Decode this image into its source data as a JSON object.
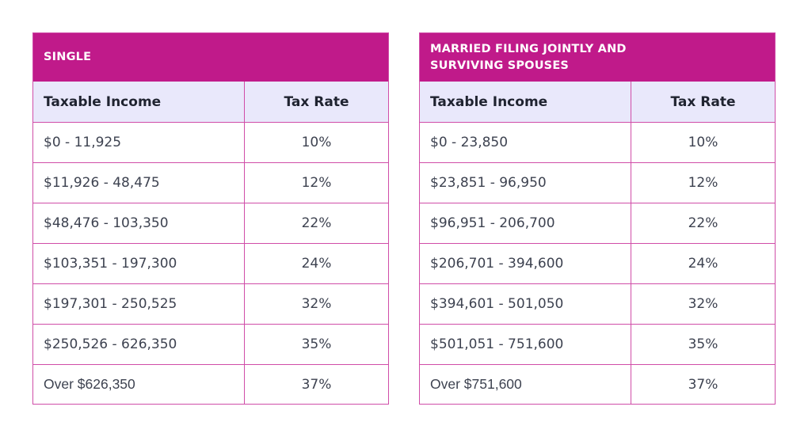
{
  "tables": [
    {
      "title": "SINGLE",
      "headers": {
        "income": "Taxable Income",
        "rate": "Tax Rate"
      },
      "rows": [
        {
          "income": "$0 - 11,925",
          "rate": "10%"
        },
        {
          "income": "$11,926 - 48,475",
          "rate": "12%"
        },
        {
          "income": "$48,476 - 103,350",
          "rate": "22%"
        },
        {
          "income": "$103,351 - 197,300",
          "rate": "24%"
        },
        {
          "income": "$197,301 - 250,525",
          "rate": "32%"
        },
        {
          "income": "$250,526 - 626,350",
          "rate": "35%"
        },
        {
          "income": "Over $626,350",
          "rate": "37%"
        }
      ]
    },
    {
      "title": "MARRIED FILING JOINTLY AND\nSURVIVING SPOUSES",
      "headers": {
        "income": "Taxable Income",
        "rate": "Tax Rate"
      },
      "rows": [
        {
          "income": "$0 - 23,850",
          "rate": "10%"
        },
        {
          "income": "$23,851 - 96,950",
          "rate": "12%"
        },
        {
          "income": "$96,951 - 206,700",
          "rate": "22%"
        },
        {
          "income": "$206,701 - 394,600",
          "rate": "24%"
        },
        {
          "income": "$394,601 - 501,050",
          "rate": "32%"
        },
        {
          "income": "$501,051 - 751,600",
          "rate": "35%"
        },
        {
          "income": "Over $751,600",
          "rate": "37%"
        }
      ]
    }
  ],
  "colors": {
    "title_background": "#c01a8a",
    "header_background": "#e9e8fb",
    "border": "#d04da8"
  }
}
